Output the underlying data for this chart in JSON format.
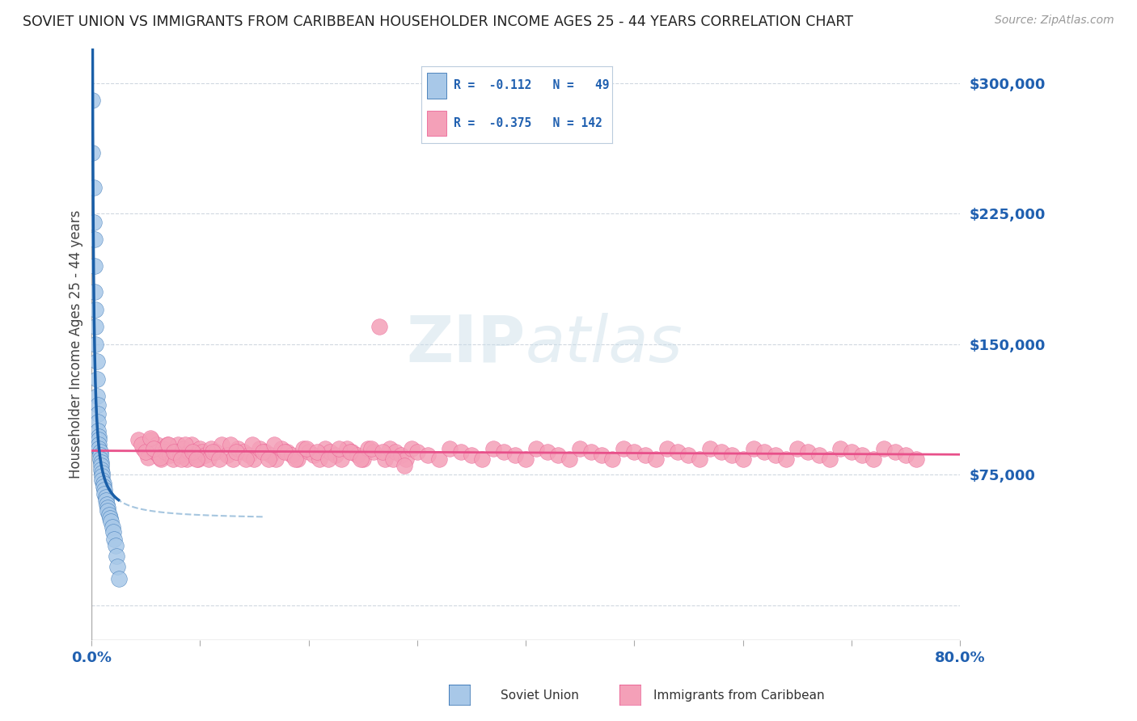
{
  "title": "SOVIET UNION VS IMMIGRANTS FROM CARIBBEAN HOUSEHOLDER INCOME AGES 25 - 44 YEARS CORRELATION CHART",
  "source": "Source: ZipAtlas.com",
  "ylabel": "Householder Income Ages 25 - 44 years",
  "xlim": [
    0.0,
    0.8
  ],
  "ylim": [
    -20000,
    320000
  ],
  "yticks": [
    0,
    75000,
    150000,
    225000,
    300000
  ],
  "ytick_labels": [
    "",
    "$75,000",
    "$150,000",
    "$225,000",
    "$300,000"
  ],
  "blue_color": "#a8c8e8",
  "pink_color": "#f4a0b8",
  "blue_line_color": "#1a5fa8",
  "pink_line_color": "#e8508a",
  "blue_dash_color": "#90b8d8",
  "title_color": "#222222",
  "source_color": "#999999",
  "axis_color": "#2060b0",
  "grid_color": "#d0d8e0",
  "background_color": "#ffffff",
  "soviet_x": [
    0.001,
    0.001,
    0.002,
    0.002,
    0.003,
    0.003,
    0.003,
    0.004,
    0.004,
    0.004,
    0.005,
    0.005,
    0.005,
    0.006,
    0.006,
    0.006,
    0.006,
    0.007,
    0.007,
    0.007,
    0.007,
    0.008,
    0.008,
    0.008,
    0.009,
    0.009,
    0.009,
    0.01,
    0.01,
    0.01,
    0.011,
    0.011,
    0.012,
    0.012,
    0.013,
    0.013,
    0.014,
    0.015,
    0.015,
    0.016,
    0.017,
    0.018,
    0.019,
    0.02,
    0.021,
    0.022,
    0.023,
    0.024,
    0.025
  ],
  "soviet_y": [
    290000,
    260000,
    240000,
    220000,
    210000,
    195000,
    180000,
    170000,
    160000,
    150000,
    140000,
    130000,
    120000,
    115000,
    110000,
    105000,
    100000,
    97000,
    95000,
    92000,
    90000,
    88000,
    86000,
    84000,
    82000,
    80000,
    78000,
    76000,
    74000,
    72000,
    70000,
    68000,
    66000,
    64000,
    62000,
    60000,
    58000,
    56000,
    54000,
    52000,
    50000,
    48000,
    45000,
    42000,
    38000,
    34000,
    28000,
    22000,
    15000
  ],
  "carib_x": [
    0.048,
    0.052,
    0.055,
    0.058,
    0.06,
    0.062,
    0.064,
    0.066,
    0.068,
    0.07,
    0.072,
    0.075,
    0.078,
    0.08,
    0.082,
    0.085,
    0.088,
    0.09,
    0.092,
    0.095,
    0.098,
    0.1,
    0.102,
    0.105,
    0.108,
    0.11,
    0.115,
    0.12,
    0.125,
    0.13,
    0.135,
    0.14,
    0.145,
    0.15,
    0.155,
    0.16,
    0.165,
    0.17,
    0.175,
    0.18,
    0.185,
    0.19,
    0.195,
    0.2,
    0.205,
    0.21,
    0.215,
    0.22,
    0.225,
    0.23,
    0.235,
    0.24,
    0.245,
    0.25,
    0.255,
    0.26,
    0.265,
    0.27,
    0.275,
    0.28,
    0.285,
    0.29,
    0.295,
    0.3,
    0.31,
    0.32,
    0.33,
    0.34,
    0.35,
    0.36,
    0.37,
    0.38,
    0.39,
    0.4,
    0.41,
    0.42,
    0.43,
    0.44,
    0.45,
    0.46,
    0.47,
    0.48,
    0.49,
    0.5,
    0.51,
    0.52,
    0.53,
    0.54,
    0.55,
    0.56,
    0.57,
    0.58,
    0.59,
    0.6,
    0.61,
    0.62,
    0.63,
    0.64,
    0.65,
    0.66,
    0.67,
    0.68,
    0.69,
    0.7,
    0.71,
    0.72,
    0.73,
    0.74,
    0.75,
    0.76,
    0.043,
    0.046,
    0.05,
    0.054,
    0.057,
    0.063,
    0.071,
    0.076,
    0.083,
    0.086,
    0.093,
    0.097,
    0.112,
    0.118,
    0.128,
    0.133,
    0.142,
    0.148,
    0.158,
    0.163,
    0.168,
    0.178,
    0.188,
    0.198,
    0.208,
    0.218,
    0.228,
    0.238,
    0.248,
    0.258,
    0.268,
    0.278,
    0.288
  ],
  "carib_y": [
    90000,
    85000,
    95000,
    88000,
    92000,
    86000,
    84000,
    90000,
    88000,
    92000,
    86000,
    84000,
    88000,
    92000,
    86000,
    90000,
    84000,
    88000,
    92000,
    86000,
    84000,
    90000,
    88000,
    86000,
    84000,
    90000,
    88000,
    92000,
    86000,
    84000,
    90000,
    88000,
    86000,
    84000,
    90000,
    88000,
    86000,
    84000,
    90000,
    88000,
    86000,
    84000,
    90000,
    88000,
    86000,
    84000,
    90000,
    88000,
    86000,
    84000,
    90000,
    88000,
    86000,
    84000,
    90000,
    88000,
    160000,
    84000,
    90000,
    88000,
    86000,
    84000,
    90000,
    88000,
    86000,
    84000,
    90000,
    88000,
    86000,
    84000,
    90000,
    88000,
    86000,
    84000,
    90000,
    88000,
    86000,
    84000,
    90000,
    88000,
    86000,
    84000,
    90000,
    88000,
    86000,
    84000,
    90000,
    88000,
    86000,
    84000,
    90000,
    88000,
    86000,
    84000,
    90000,
    88000,
    86000,
    84000,
    90000,
    88000,
    86000,
    84000,
    90000,
    88000,
    86000,
    84000,
    90000,
    88000,
    86000,
    84000,
    95000,
    92000,
    88000,
    96000,
    90000,
    85000,
    92000,
    88000,
    84000,
    92000,
    88000,
    84000,
    88000,
    84000,
    92000,
    88000,
    84000,
    92000,
    88000,
    84000,
    92000,
    88000,
    84000,
    90000,
    88000,
    84000,
    90000,
    88000,
    84000,
    90000,
    88000,
    84000,
    80000
  ]
}
